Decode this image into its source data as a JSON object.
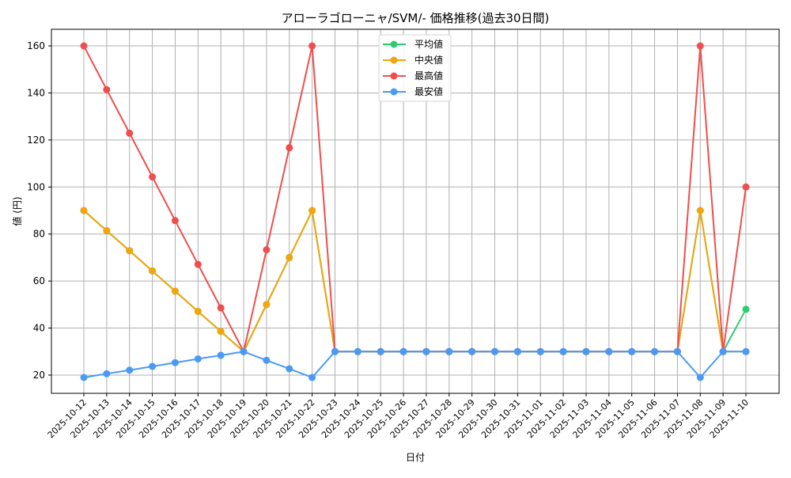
{
  "chart_data": {
    "type": "line",
    "title": "アローラゴローニャ/SVM/- 価格推移(過去30日間)",
    "xlabel": "日付",
    "ylabel": "値 (円)",
    "ylim": [
      12.95,
      166.5
    ],
    "yticks": [
      20,
      40,
      60,
      80,
      100,
      120,
      140,
      160
    ],
    "grid": true,
    "legend_position": "upper center",
    "categories": [
      "2025-10-12",
      "2025-10-13",
      "2025-10-14",
      "2025-10-15",
      "2025-10-16",
      "2025-10-17",
      "2025-10-18",
      "2025-10-19",
      "2025-10-20",
      "2025-10-21",
      "2025-10-22",
      "2025-10-23",
      "2025-10-24",
      "2025-10-25",
      "2025-10-26",
      "2025-10-27",
      "2025-10-28",
      "2025-10-29",
      "2025-10-30",
      "2025-10-31",
      "2025-11-01",
      "2025-11-02",
      "2025-11-03",
      "2025-11-04",
      "2025-11-05",
      "2025-11-06",
      "2025-11-07",
      "2025-11-08",
      "2025-11-09",
      "2025-11-10"
    ],
    "series": [
      {
        "name": "平均値",
        "color": "#2ecc71",
        "values": [
          90,
          81.4,
          72.9,
          64.3,
          55.7,
          47.1,
          38.6,
          30,
          50,
          70,
          90,
          30,
          30,
          30,
          30,
          30,
          30,
          30,
          30,
          30,
          30,
          30,
          30,
          30,
          30,
          30,
          30,
          90,
          30,
          48
        ]
      },
      {
        "name": "中央値",
        "color": "#f1a50e",
        "values": [
          90,
          81.4,
          72.9,
          64.3,
          55.7,
          47.1,
          38.6,
          30,
          50,
          70,
          90,
          30,
          30,
          30,
          30,
          30,
          30,
          30,
          30,
          30,
          30,
          30,
          30,
          30,
          30,
          30,
          30,
          90,
          30,
          30
        ]
      },
      {
        "name": "最高値",
        "color": "#f04e4e",
        "values": [
          160,
          141.4,
          122.9,
          104.3,
          85.7,
          67.1,
          48.6,
          30,
          73.3,
          116.7,
          160,
          30,
          30,
          30,
          30,
          30,
          30,
          30,
          30,
          30,
          30,
          30,
          30,
          30,
          30,
          30,
          30,
          160,
          30,
          100
        ]
      },
      {
        "name": "最安値",
        "color": "#4a9af5",
        "values": [
          19,
          20.6,
          22.1,
          23.7,
          25.3,
          26.9,
          28.4,
          30,
          26.3,
          22.7,
          19,
          30,
          30,
          30,
          30,
          30,
          30,
          30,
          30,
          30,
          30,
          30,
          30,
          30,
          30,
          30,
          30,
          19,
          30,
          30
        ]
      }
    ]
  }
}
